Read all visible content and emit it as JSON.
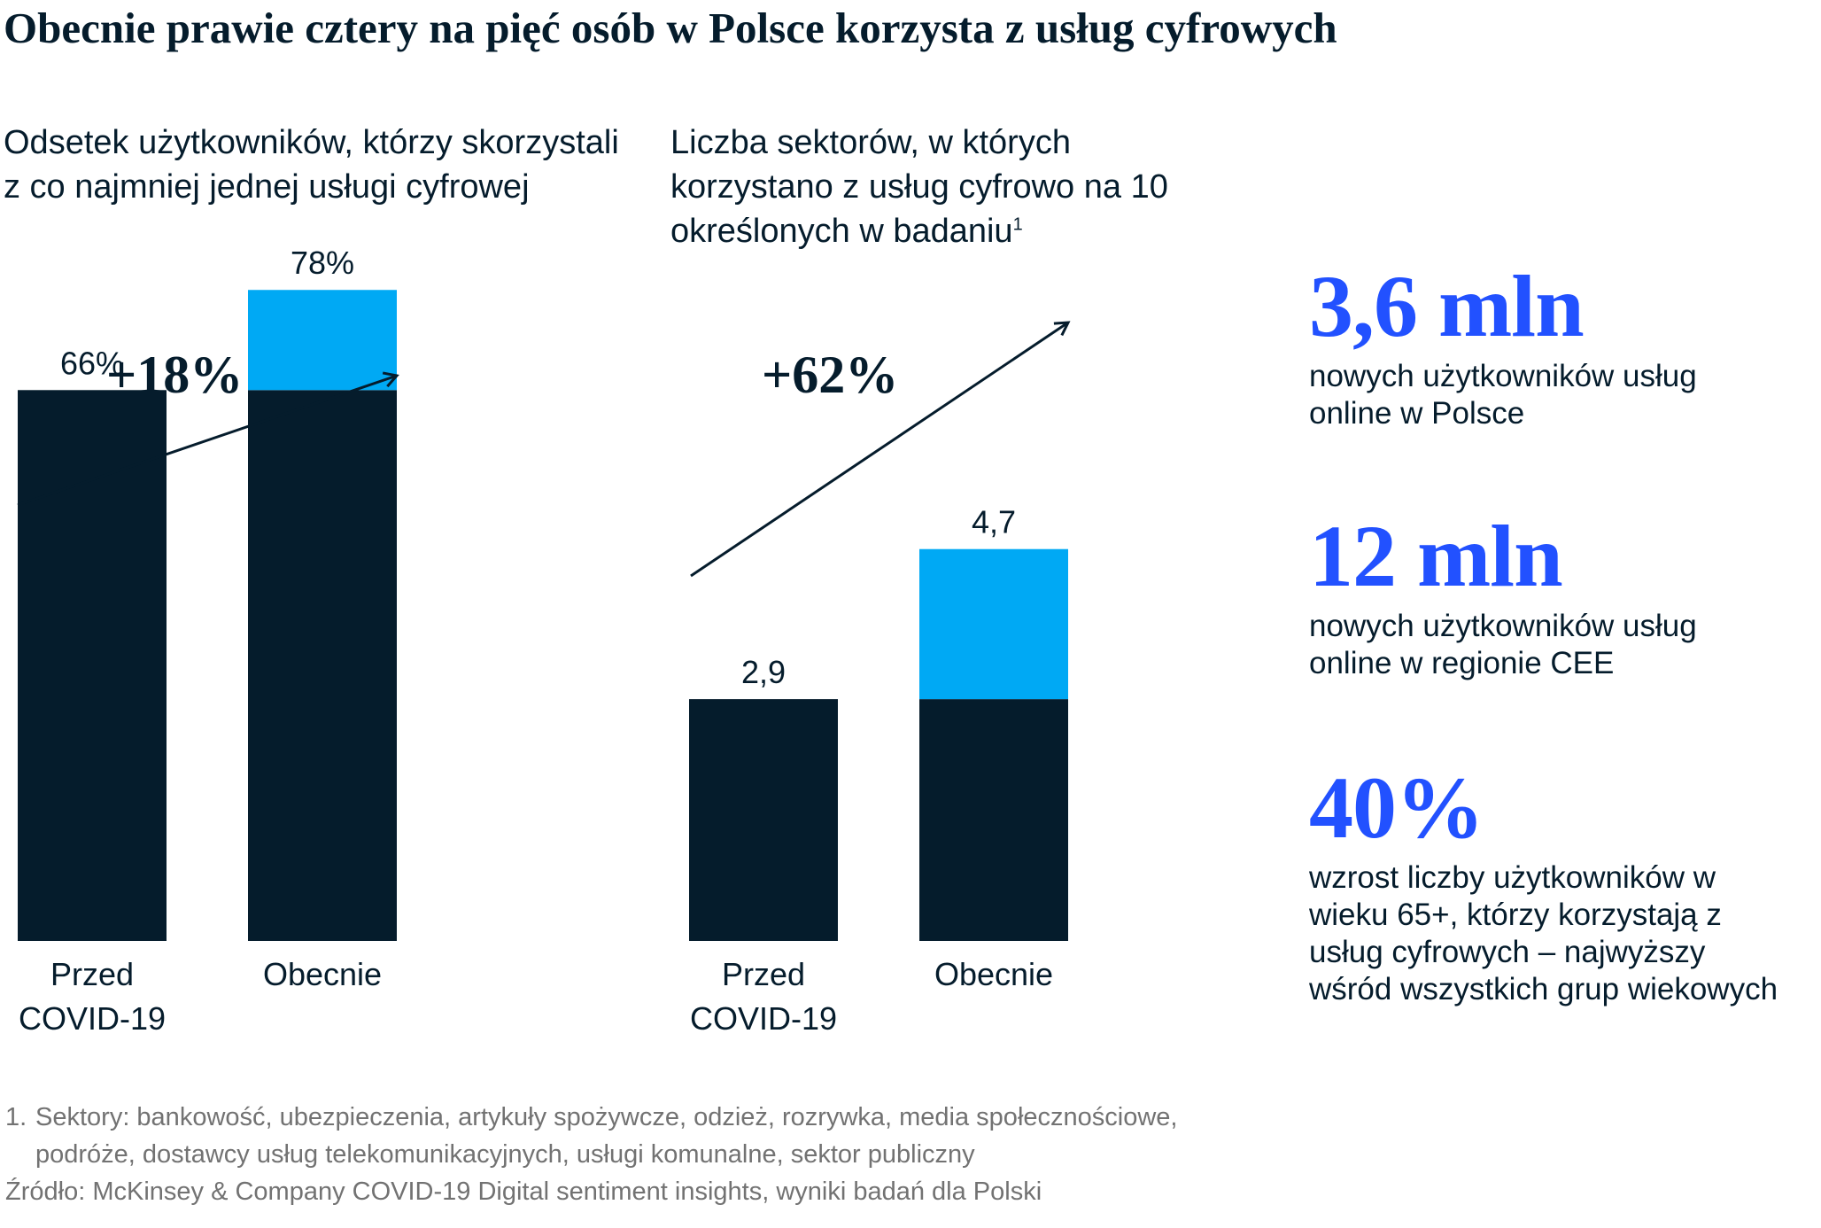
{
  "title": "Obecnie prawie cztery na pięć osób w Polsce korzysta z usług cyfrowych",
  "colors": {
    "dark": "#051c2c",
    "cyan": "#00a9f4",
    "accent_blue": "#2251ff",
    "footnote_gray": "#727272"
  },
  "chart_data": [
    {
      "type": "bar",
      "title": "Odsetek użytkowników, którzy skorzystali z co najmniej jednej usługi cyfrowej",
      "categories": [
        "Przed COVID-19",
        "Obecnie"
      ],
      "category_lines": [
        [
          "Przed",
          "COVID-19"
        ],
        [
          "Obecnie"
        ]
      ],
      "values": [
        66,
        78
      ],
      "value_labels": [
        "66%",
        "78%"
      ],
      "stacked_increase": 12,
      "change_label": "+18%",
      "ylim": [
        0,
        100
      ]
    },
    {
      "type": "bar",
      "title": "Liczba sektorów, w których korzystano z usług cyfrowo na 10 określonych w badaniu",
      "title_footnote_mark": "1",
      "categories": [
        "Przed COVID-19",
        "Obecnie"
      ],
      "category_lines": [
        [
          "Przed",
          "COVID-19"
        ],
        [
          "Obecnie"
        ]
      ],
      "values": [
        2.9,
        4.7
      ],
      "value_labels": [
        "2,9",
        "4,7"
      ],
      "stacked_increase": 1.8,
      "change_label": "+62%",
      "ylim": [
        0,
        10
      ]
    }
  ],
  "stats": [
    {
      "value": "3,6 mln",
      "description": "nowych użytkowników usług online w Polsce"
    },
    {
      "value": "12 mln",
      "description": "nowych użytkowników usług online w regionie CEE"
    },
    {
      "value": "40%",
      "description": "wzrost liczby użytkowników w wieku 65+, którzy korzystają z usług cyfrowych – najwyższy wśród wszystkich grup wiekowych"
    }
  ],
  "footnotes": {
    "note_number": "1.",
    "note_text": "Sektory: bankowość, ubezpieczenia, artykuły spożywcze, odzież, rozrywka, media społecznościowe, podróże, dostawcy usług telekomunikacyjnych, usługi komunalne, sektor publiczny",
    "source": "Źródło: McKinsey & Company COVID-19 Digital sentiment insights, wyniki badań dla Polski"
  }
}
